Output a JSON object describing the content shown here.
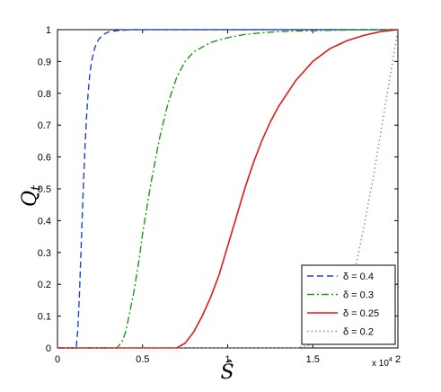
{
  "chart_data": {
    "type": "line",
    "xlabel": "Ŝ",
    "ylabel": "Q_t",
    "ylabel_main": "Q",
    "ylabel_sub": "t",
    "x_multiplier": "x 10",
    "x_multiplier_exp": "4",
    "xlim": [
      0,
      2
    ],
    "ylim": [
      0,
      1
    ],
    "xticks": [
      0,
      0.5,
      1,
      1.5,
      2
    ],
    "xtick_labels": [
      "0",
      "0.5",
      "1",
      "1.5",
      "2"
    ],
    "yticks": [
      0,
      0.1,
      0.2,
      0.3,
      0.4,
      0.5,
      0.6,
      0.7,
      0.8,
      0.9,
      1
    ],
    "ytick_labels": [
      "0",
      "0.1",
      "0.2",
      "0.3",
      "0.4",
      "0.5",
      "0.6",
      "0.7",
      "0.8",
      "0.9",
      "1"
    ],
    "grid": false,
    "legend_position": "bottom-right",
    "series": [
      {
        "name": "δ = 0.4",
        "color": "#1f3fe0",
        "style": "dashed",
        "x": [
          0,
          0.11,
          0.12,
          0.13,
          0.14,
          0.15,
          0.16,
          0.17,
          0.18,
          0.19,
          0.2,
          0.22,
          0.24,
          0.26,
          0.28,
          0.3,
          0.35,
          0.4,
          0.45,
          0.5,
          0.6,
          0.8,
          1.0,
          1.5,
          2.0
        ],
        "y": [
          0,
          0,
          0.06,
          0.18,
          0.33,
          0.48,
          0.61,
          0.72,
          0.8,
          0.86,
          0.9,
          0.945,
          0.968,
          0.98,
          0.988,
          0.993,
          0.997,
          0.999,
          1,
          1,
          1,
          1,
          1,
          1,
          1
        ]
      },
      {
        "name": "δ = 0.3",
        "color": "#1a9a1a",
        "style": "dashdot",
        "x": [
          0,
          0.35,
          0.38,
          0.4,
          0.42,
          0.45,
          0.48,
          0.5,
          0.55,
          0.6,
          0.65,
          0.7,
          0.75,
          0.8,
          0.9,
          1.0,
          1.1,
          1.2,
          1.3,
          1.5,
          1.7,
          2.0
        ],
        "y": [
          0,
          0,
          0.02,
          0.05,
          0.1,
          0.18,
          0.28,
          0.36,
          0.52,
          0.66,
          0.77,
          0.85,
          0.9,
          0.93,
          0.96,
          0.975,
          0.985,
          0.99,
          0.994,
          0.997,
          0.999,
          1
        ]
      },
      {
        "name": "δ = 0.25",
        "color": "#e01a1a",
        "style": "solid",
        "x": [
          0,
          0.7,
          0.75,
          0.8,
          0.85,
          0.9,
          0.95,
          1.0,
          1.05,
          1.1,
          1.15,
          1.2,
          1.25,
          1.3,
          1.4,
          1.5,
          1.6,
          1.7,
          1.8,
          1.9,
          2.0
        ],
        "y": [
          0,
          0,
          0.015,
          0.05,
          0.1,
          0.16,
          0.23,
          0.32,
          0.41,
          0.5,
          0.58,
          0.65,
          0.71,
          0.76,
          0.84,
          0.9,
          0.94,
          0.965,
          0.982,
          0.994,
          1
        ]
      },
      {
        "name": "δ = 0.2",
        "color": "#888888",
        "style": "dotted",
        "x": [
          0,
          1.4,
          1.45,
          1.5,
          1.55,
          1.6,
          1.65,
          1.7,
          1.75,
          1.8,
          1.85,
          1.9,
          1.95,
          2.0
        ],
        "y": [
          0,
          0,
          0.005,
          0.01,
          0.02,
          0.04,
          0.08,
          0.15,
          0.25,
          0.38,
          0.52,
          0.68,
          0.84,
          1
        ]
      }
    ]
  }
}
